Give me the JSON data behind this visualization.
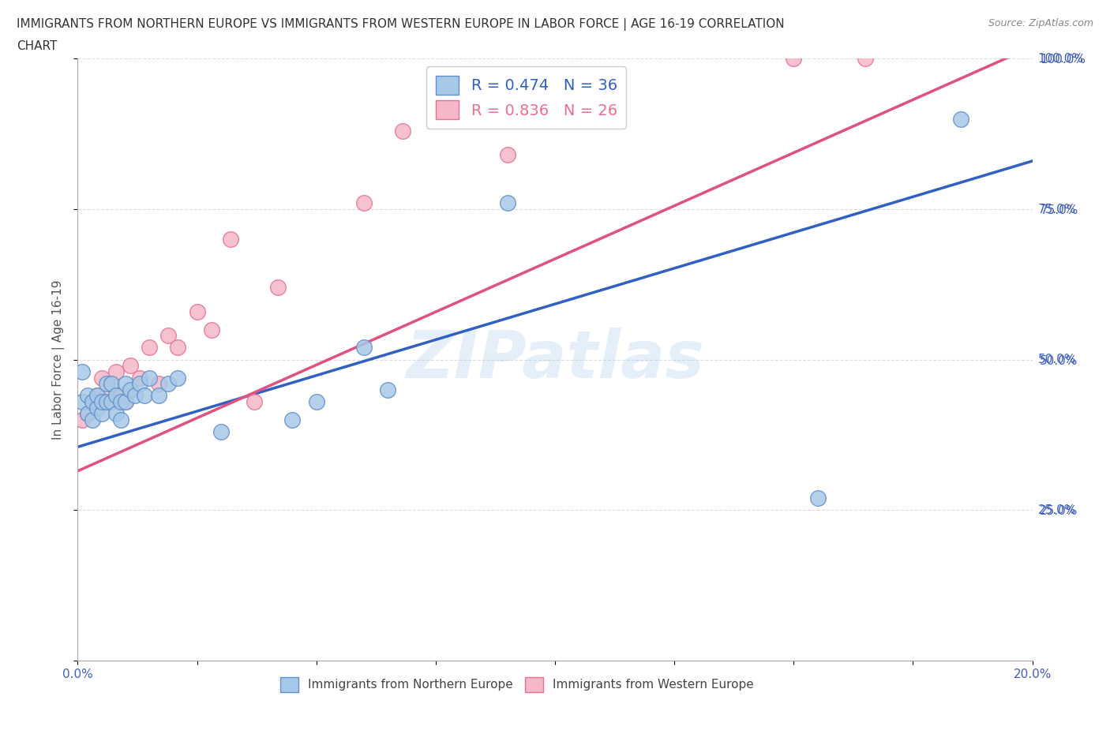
{
  "title_line1": "IMMIGRANTS FROM NORTHERN EUROPE VS IMMIGRANTS FROM WESTERN EUROPE IN LABOR FORCE | AGE 16-19 CORRELATION",
  "title_line2": "CHART",
  "source": "Source: ZipAtlas.com",
  "xlabel_legend": "Immigrants from Northern Europe",
  "xlabel_legend2": "Immigrants from Western Europe",
  "ylabel": "In Labor Force | Age 16-19",
  "xlim": [
    0.0,
    0.2
  ],
  "ylim": [
    0.0,
    1.0
  ],
  "xtick_positions": [
    0.0,
    0.025,
    0.05,
    0.075,
    0.1,
    0.125,
    0.15,
    0.175,
    0.2
  ],
  "xtick_labels_show": {
    "0.0": "0.0%",
    "0.20": "20.0%"
  },
  "ytick_positions": [
    0.0,
    0.25,
    0.5,
    0.75,
    1.0
  ],
  "ytick_labels": [
    "",
    "25.0%",
    "50.0%",
    "75.0%",
    "100.0%"
  ],
  "blue_color": "#A8C8E8",
  "pink_color": "#F5B8C8",
  "blue_edge_color": "#6090C8",
  "pink_edge_color": "#E87090",
  "blue_line_color": "#3060C0",
  "pink_line_color": "#E05080",
  "R_blue": 0.474,
  "N_blue": 36,
  "R_pink": 0.836,
  "N_pink": 26,
  "blue_scatter_x": [
    0.001,
    0.001,
    0.002,
    0.002,
    0.003,
    0.003,
    0.004,
    0.004,
    0.005,
    0.005,
    0.006,
    0.006,
    0.007,
    0.007,
    0.008,
    0.008,
    0.009,
    0.009,
    0.01,
    0.01,
    0.011,
    0.012,
    0.013,
    0.014,
    0.015,
    0.017,
    0.019,
    0.021,
    0.03,
    0.045,
    0.05,
    0.06,
    0.065,
    0.09,
    0.155,
    0.185
  ],
  "blue_scatter_y": [
    0.43,
    0.48,
    0.41,
    0.44,
    0.4,
    0.43,
    0.42,
    0.44,
    0.41,
    0.43,
    0.43,
    0.46,
    0.43,
    0.46,
    0.41,
    0.44,
    0.4,
    0.43,
    0.43,
    0.46,
    0.45,
    0.44,
    0.46,
    0.44,
    0.47,
    0.44,
    0.46,
    0.47,
    0.38,
    0.4,
    0.43,
    0.52,
    0.45,
    0.76,
    0.27,
    0.9
  ],
  "pink_scatter_x": [
    0.001,
    0.002,
    0.003,
    0.004,
    0.005,
    0.006,
    0.007,
    0.008,
    0.009,
    0.01,
    0.011,
    0.013,
    0.015,
    0.017,
    0.019,
    0.021,
    0.025,
    0.028,
    0.032,
    0.037,
    0.042,
    0.06,
    0.068,
    0.09,
    0.15,
    0.165
  ],
  "pink_scatter_y": [
    0.4,
    0.41,
    0.43,
    0.44,
    0.47,
    0.44,
    0.46,
    0.48,
    0.44,
    0.43,
    0.49,
    0.47,
    0.52,
    0.46,
    0.54,
    0.52,
    0.58,
    0.55,
    0.7,
    0.43,
    0.62,
    0.76,
    0.88,
    0.84,
    1.0,
    1.0
  ],
  "blue_size": 200,
  "pink_size": 200,
  "watermark_text": "ZIPatlas",
  "background_color": "#FFFFFF",
  "grid_color": "#DDDDDD",
  "title_fontsize": 11,
  "label_fontsize": 11,
  "tick_fontsize": 11,
  "legend_fontsize": 14,
  "tick_color": "#4060C0",
  "ylabel_color": "#555555"
}
